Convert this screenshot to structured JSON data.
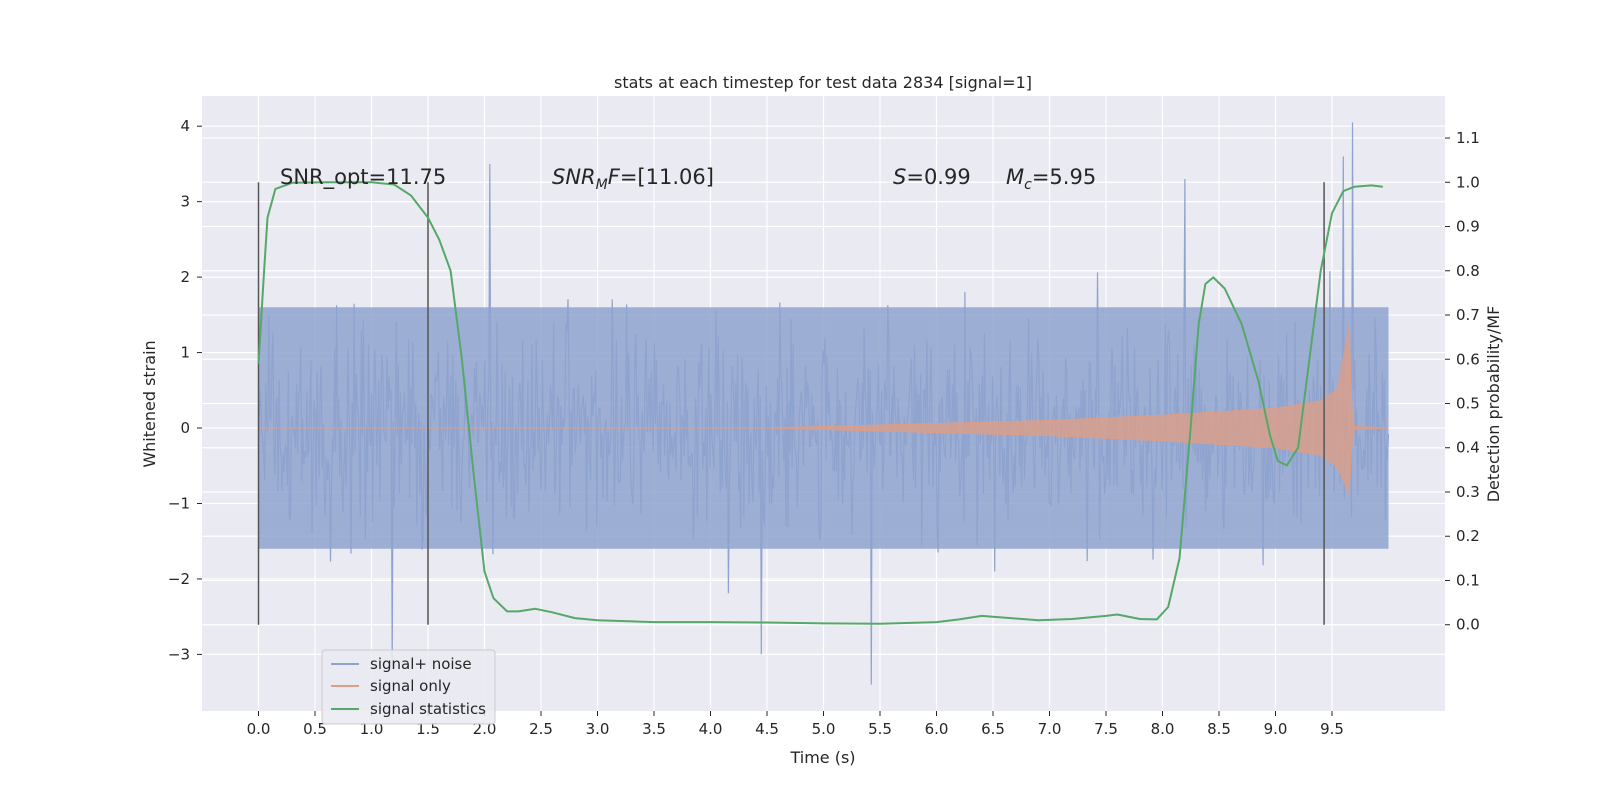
{
  "chart_data": {
    "type": "line",
    "title": "stats at each timestep for test data 2834 [signal=1]",
    "xlabel": "Time (s)",
    "ylabel": "Whitened strain",
    "ylabel_right": "Detection probability/MF",
    "xlim": [
      -0.5,
      10.5
    ],
    "ylim": [
      -3.75,
      4.4
    ],
    "ylim_right": [
      -0.195,
      1.195
    ],
    "x_ticks": [
      "0.0",
      "0.5",
      "1.0",
      "1.5",
      "2.0",
      "2.5",
      "3.0",
      "3.5",
      "4.0",
      "4.5",
      "5.0",
      "5.5",
      "6.0",
      "6.5",
      "7.0",
      "7.5",
      "8.0",
      "8.5",
      "9.0",
      "9.5"
    ],
    "y_ticks": [
      "4",
      "3",
      "2",
      "1",
      "0",
      "−1",
      "−2",
      "−3"
    ],
    "y_right_ticks": [
      "1.1",
      "1.0",
      "0.9",
      "0.8",
      "0.7",
      "0.6",
      "0.5",
      "0.4",
      "0.3",
      "0.2",
      "0.1",
      "0.0"
    ],
    "grid": true,
    "legend_position": "lower-left",
    "annotations": {
      "snr_opt": "SNR_opt=11.75",
      "snr_mf_base": "SNR",
      "snr_mf_sub": "M",
      "snr_mf_f": "F",
      "snr_mf_value": "=[11.06]",
      "s_sym": "S",
      "s_value": "=0.99",
      "mc_base": "M",
      "mc_sub": "c",
      "mc_value": "=5.95"
    },
    "vertical_lines_x": [
      0.0,
      1.5,
      9.43
    ],
    "series": [
      {
        "name": "signal+ noise",
        "color": "#8fa3cf",
        "axis": "left",
        "x_range": [
          0.0,
          10.0
        ],
        "band": [
          -1.6,
          1.6
        ],
        "peak_spikes": [
          {
            "x": 2.05,
            "y": 3.5
          },
          {
            "x": 9.68,
            "y": 4.05
          },
          {
            "x": 9.6,
            "y": 3.6
          },
          {
            "x": 8.2,
            "y": 3.3
          },
          {
            "x": 1.18,
            "y": -3.2
          },
          {
            "x": 5.42,
            "y": -3.4
          },
          {
            "x": 4.45,
            "y": -3.0
          }
        ]
      },
      {
        "name": "signal only",
        "color": "#dd9d86",
        "axis": "left",
        "envelope": [
          {
            "x": 0.0,
            "y": 0.0
          },
          {
            "x": 4.5,
            "y": 0.0
          },
          {
            "x": 5.0,
            "y": 0.02
          },
          {
            "x": 6.0,
            "y": 0.06
          },
          {
            "x": 7.0,
            "y": 0.1
          },
          {
            "x": 8.0,
            "y": 0.17
          },
          {
            "x": 9.0,
            "y": 0.26
          },
          {
            "x": 9.4,
            "y": 0.36
          },
          {
            "x": 9.55,
            "y": 0.52
          },
          {
            "x": 9.65,
            "y": 1.35
          },
          {
            "x": 9.68,
            "y": 0.15
          },
          {
            "x": 9.7,
            "y": 0.02
          },
          {
            "x": 10.0,
            "y": 0.0
          }
        ]
      },
      {
        "name": "signal statistics",
        "color": "#55a868",
        "axis": "right",
        "points": [
          {
            "x": 0.0,
            "y": 0.59
          },
          {
            "x": 0.05,
            "y": 0.8
          },
          {
            "x": 0.08,
            "y": 0.92
          },
          {
            "x": 0.15,
            "y": 0.985
          },
          {
            "x": 0.3,
            "y": 0.999
          },
          {
            "x": 0.6,
            "y": 1.0
          },
          {
            "x": 1.0,
            "y": 1.0
          },
          {
            "x": 1.2,
            "y": 0.995
          },
          {
            "x": 1.35,
            "y": 0.97
          },
          {
            "x": 1.5,
            "y": 0.92
          },
          {
            "x": 1.6,
            "y": 0.87
          },
          {
            "x": 1.7,
            "y": 0.8
          },
          {
            "x": 1.8,
            "y": 0.6
          },
          {
            "x": 1.9,
            "y": 0.35
          },
          {
            "x": 2.0,
            "y": 0.12
          },
          {
            "x": 2.08,
            "y": 0.06
          },
          {
            "x": 2.2,
            "y": 0.03
          },
          {
            "x": 2.3,
            "y": 0.03
          },
          {
            "x": 2.45,
            "y": 0.036
          },
          {
            "x": 2.6,
            "y": 0.028
          },
          {
            "x": 2.8,
            "y": 0.015
          },
          {
            "x": 3.0,
            "y": 0.01
          },
          {
            "x": 3.5,
            "y": 0.006
          },
          {
            "x": 4.0,
            "y": 0.006
          },
          {
            "x": 4.5,
            "y": 0.005
          },
          {
            "x": 5.0,
            "y": 0.003
          },
          {
            "x": 5.5,
            "y": 0.002
          },
          {
            "x": 6.0,
            "y": 0.006
          },
          {
            "x": 6.2,
            "y": 0.012
          },
          {
            "x": 6.4,
            "y": 0.02
          },
          {
            "x": 6.6,
            "y": 0.016
          },
          {
            "x": 6.9,
            "y": 0.01
          },
          {
            "x": 7.2,
            "y": 0.013
          },
          {
            "x": 7.5,
            "y": 0.02
          },
          {
            "x": 7.6,
            "y": 0.023
          },
          {
            "x": 7.8,
            "y": 0.013
          },
          {
            "x": 7.95,
            "y": 0.012
          },
          {
            "x": 8.05,
            "y": 0.04
          },
          {
            "x": 8.15,
            "y": 0.15
          },
          {
            "x": 8.25,
            "y": 0.45
          },
          {
            "x": 8.32,
            "y": 0.68
          },
          {
            "x": 8.38,
            "y": 0.77
          },
          {
            "x": 8.45,
            "y": 0.785
          },
          {
            "x": 8.55,
            "y": 0.76
          },
          {
            "x": 8.7,
            "y": 0.68
          },
          {
            "x": 8.85,
            "y": 0.55
          },
          {
            "x": 8.95,
            "y": 0.43
          },
          {
            "x": 9.02,
            "y": 0.37
          },
          {
            "x": 9.1,
            "y": 0.36
          },
          {
            "x": 9.2,
            "y": 0.4
          },
          {
            "x": 9.3,
            "y": 0.6
          },
          {
            "x": 9.4,
            "y": 0.8
          },
          {
            "x": 9.5,
            "y": 0.93
          },
          {
            "x": 9.6,
            "y": 0.98
          },
          {
            "x": 9.7,
            "y": 0.99
          },
          {
            "x": 9.85,
            "y": 0.993
          },
          {
            "x": 9.95,
            "y": 0.99
          }
        ]
      }
    ]
  }
}
